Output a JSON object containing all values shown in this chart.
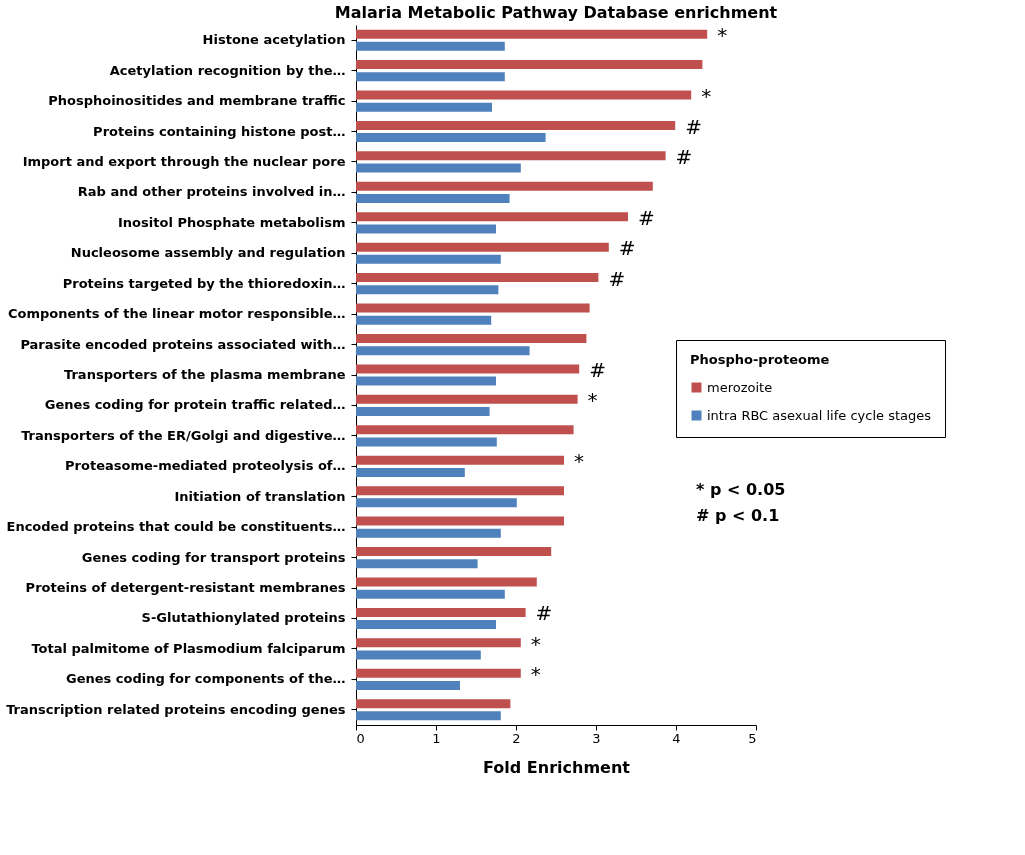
{
  "chart_data": {
    "type": "bar",
    "orientation": "horizontal",
    "title": "Malaria Metabolic Pathway Database enrichment",
    "xlabel": "Fold Enrichment",
    "legend_title": "Phospho-proteome",
    "legend": "right",
    "grid": false,
    "categories": [
      "Histone acetylation",
      "Acetylation recognition by the…",
      "Phosphoinositides and membrane traffic",
      "Proteins containing histone post…",
      "Import and export through the nuclear pore",
      "Rab and other proteins involved in…",
      "Inositol Phosphate metabolism",
      "Nucleosome assembly and regulation",
      "Proteins targeted by the thioredoxin…",
      "Components of the linear motor responsible…",
      "Parasite encoded proteins associated with…",
      "Transporters of the plasma membrane",
      "Genes coding for protein traffic related…",
      "Transporters of the ER/Golgi and digestive…",
      "Proteasome-mediated proteolysis of…",
      "Initiation of translation",
      "Encoded proteins that could be constituents…",
      "Genes coding for transport proteins",
      "Proteins of detergent-resistant membranes",
      "S-Glutathionylated proteins",
      "Total palmitome of Plasmodium falciparum",
      "Genes coding for components of the…",
      "Transcription related proteins encoding genes"
    ],
    "series": [
      {
        "name": "merozoite",
        "color": "#c0504d",
        "values": [
          4.39,
          4.33,
          4.19,
          3.99,
          3.87,
          3.71,
          3.4,
          3.16,
          3.03,
          2.92,
          2.88,
          2.79,
          2.77,
          2.72,
          2.6,
          2.6,
          2.6,
          2.44,
          2.26,
          2.12,
          2.06,
          2.06,
          1.93
        ]
      },
      {
        "name": "intra RBC asexual life cycle stages",
        "color": "#4f81bd",
        "values": [
          1.86,
          1.86,
          1.7,
          2.37,
          2.06,
          1.92,
          1.75,
          1.81,
          1.78,
          1.69,
          2.17,
          1.75,
          1.67,
          1.76,
          1.36,
          2.01,
          1.81,
          1.52,
          1.86,
          1.75,
          1.56,
          1.3,
          1.81
        ]
      }
    ],
    "xlim": [
      0,
      5
    ],
    "xticks": [
      0,
      1,
      2,
      3,
      4,
      5
    ],
    "annotations": [
      {
        "text": "*",
        "x": 4.39,
        "y": "Histone acetylation"
      },
      {
        "text": "*",
        "x": 4.19,
        "y": "Phosphoinositides and membrane traffic"
      },
      {
        "text": "#",
        "x": 3.99,
        "y": "Proteins containing histone post…"
      },
      {
        "text": "#",
        "x": 3.87,
        "y": "Import and export through the nuclear pore"
      },
      {
        "text": "#",
        "x": 3.4,
        "y": "Inositol Phosphate metabolism"
      },
      {
        "text": "#",
        "x": 3.16,
        "y": "Nucleosome assembly and regulation"
      },
      {
        "text": "#",
        "x": 3.03,
        "y": "Proteins targeted by the thioredoxin…"
      },
      {
        "text": "#",
        "x": 2.79,
        "y": "Transporters of the plasma membrane"
      },
      {
        "text": "*",
        "x": 2.77,
        "y": "Genes coding for protein traffic related…"
      },
      {
        "text": "*",
        "x": 2.6,
        "y": "Proteasome-mediated proteolysis of…"
      },
      {
        "text": "#",
        "x": 2.12,
        "y": "S-Glutathionylated proteins"
      },
      {
        "text": "*",
        "x": 2.06,
        "y": "Total palmitome of Plasmodium falciparum"
      },
      {
        "text": "*",
        "x": 2.06,
        "y": "Genes coding for components of the…"
      },
      "* p < 0.05",
      "# p < 0.1"
    ]
  }
}
